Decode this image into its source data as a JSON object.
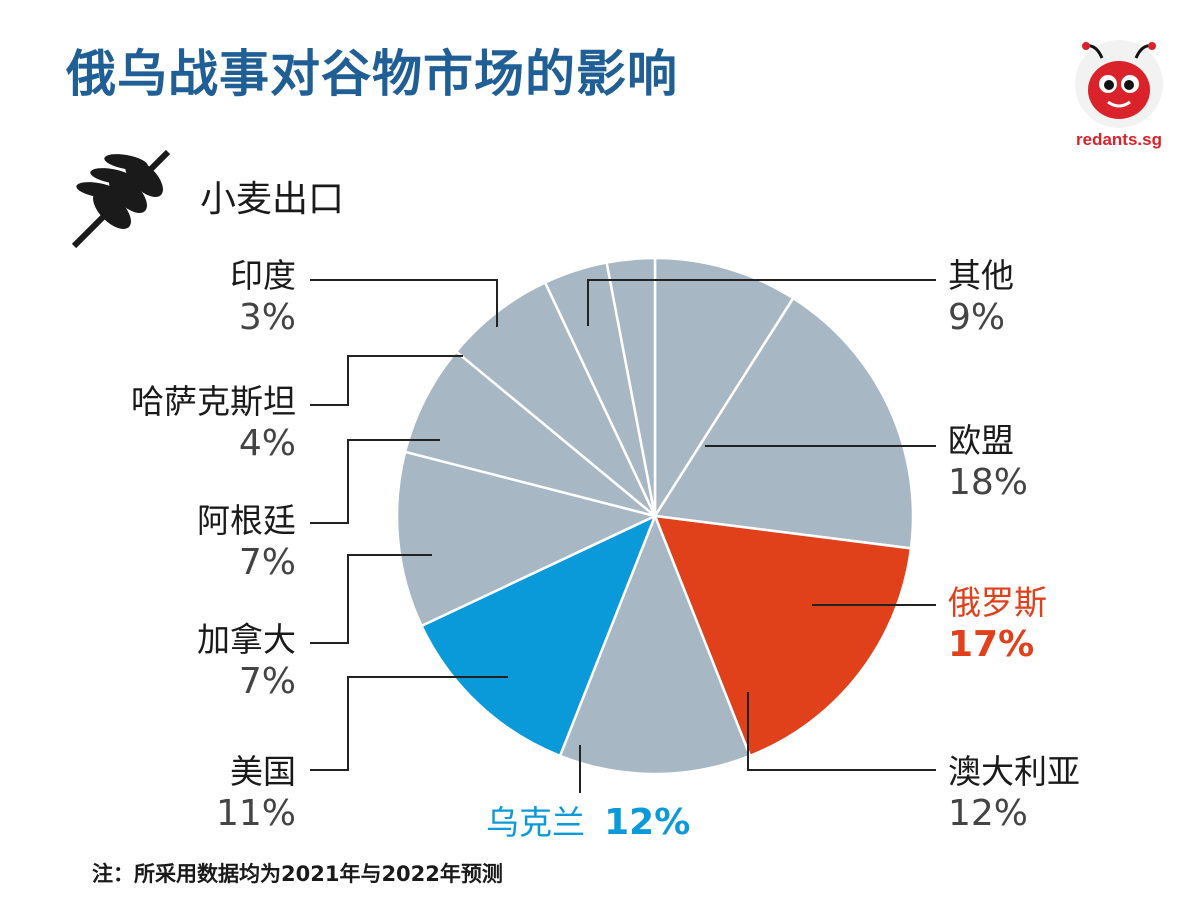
{
  "title": "俄乌战事对谷物市场的影响",
  "logo_text": "redants.sg",
  "note": "注：所采用数据均为2021年与2022年预测",
  "colors": {
    "title": "#1f5f96",
    "russia": "#e0401a",
    "ukraine": "#0a9ad9",
    "other": "#a8b7c4"
  },
  "chart_data": {
    "type": "pie",
    "title": "小麦出口",
    "unit": "%",
    "slices": [
      {
        "name": "其他",
        "value": 9,
        "label": "9%",
        "color": "#a8b7c4"
      },
      {
        "name": "欧盟",
        "value": 18,
        "label": "18%",
        "color": "#a8b7c4"
      },
      {
        "name": "俄罗斯",
        "value": 17,
        "label": "17%",
        "color": "#e0401a"
      },
      {
        "name": "澳大利亚",
        "value": 12,
        "label": "12%",
        "color": "#a8b7c4"
      },
      {
        "name": "乌克兰",
        "value": 12,
        "label": "12%",
        "color": "#0a9ad9"
      },
      {
        "name": "美国",
        "value": 11,
        "label": "11%",
        "color": "#a8b7c4"
      },
      {
        "name": "加拿大",
        "value": 7,
        "label": "7%",
        "color": "#a8b7c4"
      },
      {
        "name": "阿根廷",
        "value": 7,
        "label": "7%",
        "color": "#a8b7c4"
      },
      {
        "name": "哈萨克斯坦",
        "value": 4,
        "label": "4%",
        "color": "#a8b7c4"
      },
      {
        "name": "印度",
        "value": 3,
        "label": "3%",
        "color": "#a8b7c4"
      }
    ]
  }
}
